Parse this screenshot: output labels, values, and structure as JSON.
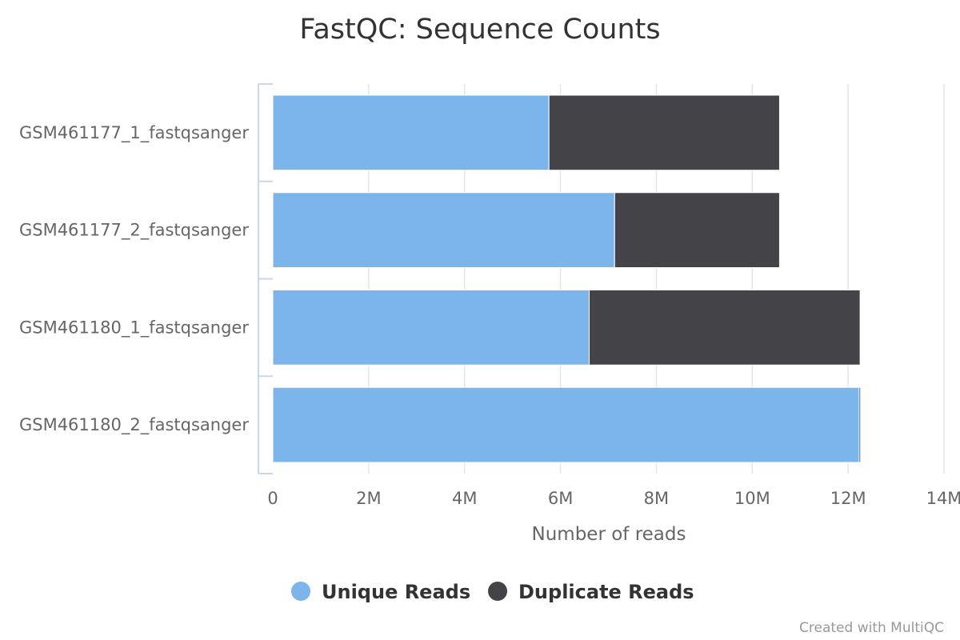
{
  "chart_data": {
    "type": "bar",
    "orientation": "horizontal",
    "stacked": true,
    "title": "FastQC: Sequence Counts",
    "categories": [
      "GSM461177_1_fastqsanger",
      "GSM461177_2_fastqsanger",
      "GSM461180_1_fastqsanger",
      "GSM461180_2_fastqsanger"
    ],
    "series": [
      {
        "name": "Unique Reads",
        "color": "#7cb5ec",
        "values": [
          5760000,
          7130000,
          6600000,
          12230000
        ]
      },
      {
        "name": "Duplicate Reads",
        "color": "#434348",
        "values": [
          4810000,
          3440000,
          5650000,
          30000
        ]
      }
    ],
    "xlabel": "Number of reads",
    "xlim": [
      0,
      14000000
    ],
    "xticks": [
      0,
      2000000,
      4000000,
      6000000,
      8000000,
      10000000,
      12000000,
      14000000
    ],
    "xtick_labels": [
      "0",
      "2M",
      "4M",
      "6M",
      "8M",
      "10M",
      "12M",
      "14M"
    ],
    "grid": true,
    "legend_position": "bottom-center"
  },
  "credit": "Created with MultiQC"
}
